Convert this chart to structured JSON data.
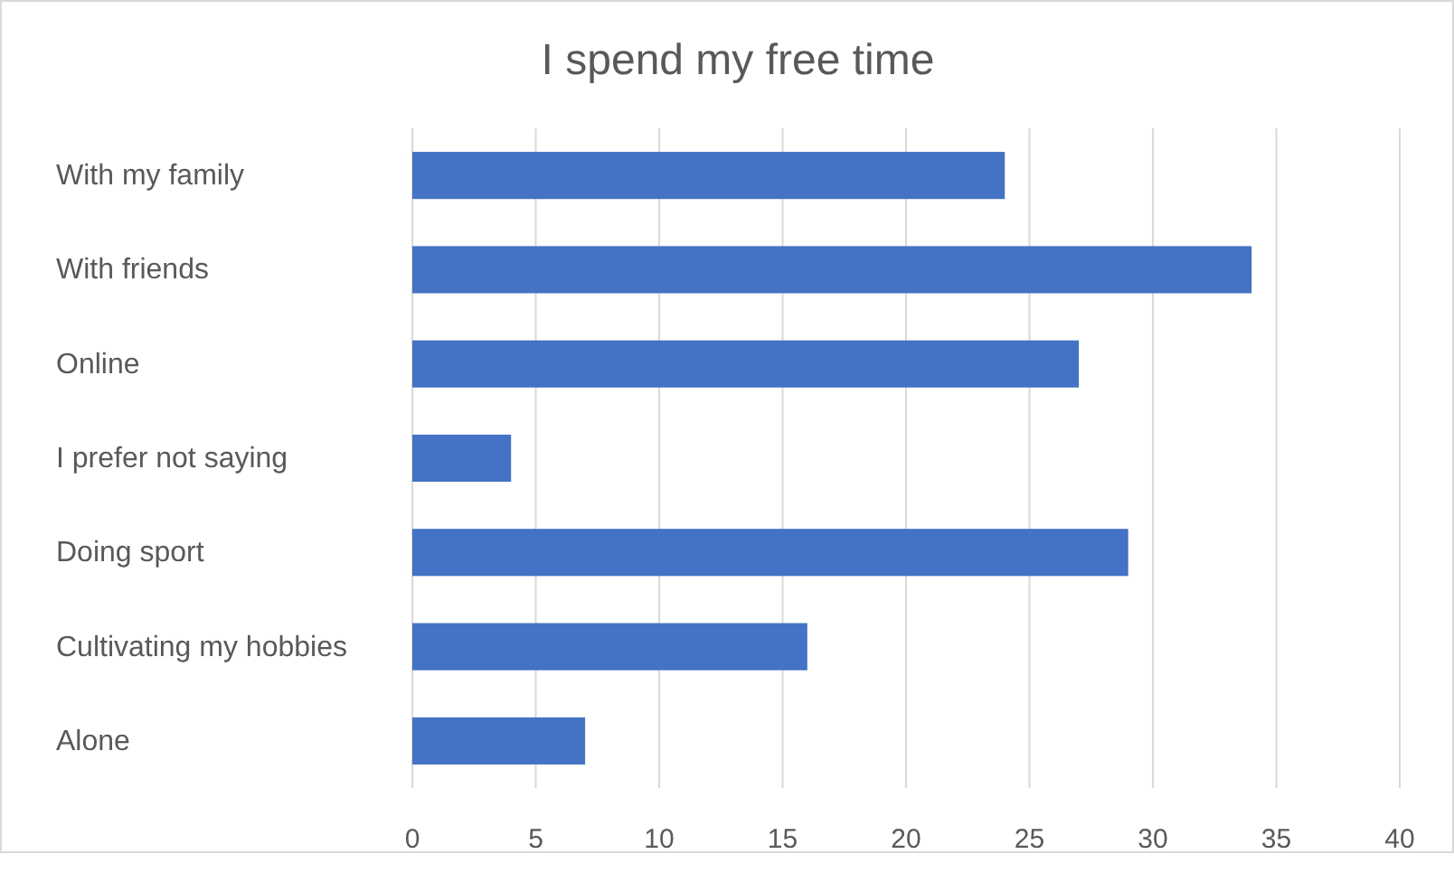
{
  "chart_data": {
    "type": "bar",
    "title": "I spend my free time",
    "orientation": "horizontal",
    "categories": [
      "With my family",
      "With friends",
      "Online",
      "I prefer not saying",
      "Doing sport",
      "Cultivating my hobbies",
      "Alone"
    ],
    "values": [
      24,
      34,
      27,
      4,
      29,
      16,
      7
    ],
    "color": "#4472c4",
    "xlim": [
      0,
      40
    ],
    "xticks": [
      0,
      5,
      10,
      15,
      20,
      25,
      30,
      35,
      40
    ],
    "grid": "x"
  }
}
